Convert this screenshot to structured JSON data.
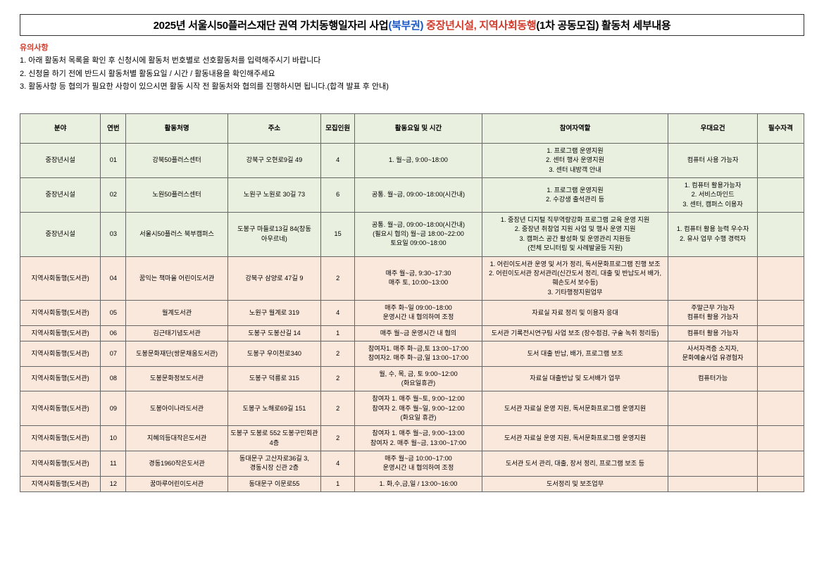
{
  "title": {
    "part1": "2025년 서울시50플러스재단 권역 가치동행일자리 사업",
    "part2": "(북부권)",
    "part3": " 중장년시설, 지역사회동행",
    "part4": "(1차 공동모집) 활동처 세부내용"
  },
  "notice": {
    "header": "유의사항",
    "items": [
      "1. 아래 활동처 목록을 확인 후 신청시에 활동처 번호별로 선호활동처를 입력해주시기 바랍니다",
      "2. 신청을 하기 전에 반드시 활동처별 활동요일 / 시간 / 활동내용을 확인해주세요",
      "3. 활동사항 등 협의가 필요한 사항이 있으시면 활동 시작 전 활동처와 협의를 진행하시면 됩니다.(합격 발표 후 안내)"
    ]
  },
  "columns": [
    "분야",
    "연번",
    "활동처명",
    "주소",
    "모집인원",
    "활동요일 및 시간",
    "참여자역할",
    "우대요건",
    "필수자격"
  ],
  "colors": {
    "header_bg": "#eaf0df",
    "cat_a_bg": "#eaf0df",
    "cat_b_bg": "#fbe8dd",
    "border": "#666666",
    "title_blue": "#1a56c2",
    "title_red": "#d23a2a"
  },
  "rows": [
    {
      "cat": "a",
      "field": "중장년시설",
      "no": "01",
      "name": "강북50플러스센터",
      "addr": "강북구 오현로9길 49",
      "recruit": "4",
      "sched": "1. 월~금, 9:00~18:00",
      "role": "1. 프로그램 운영지원\n2. 센터 행사 운영지원\n3. 센터 내방객 안내",
      "pref": "컴퓨터 사용 가능자",
      "req": ""
    },
    {
      "cat": "a",
      "field": "중장년시설",
      "no": "02",
      "name": "노원50플러스센터",
      "addr": "노원구 노원로 30길 73",
      "recruit": "6",
      "sched": "공통. 월~금, 09:00~18:00(시간내)",
      "role": "1. 프로그램 운영지원\n2. 수강생 출석관리 등",
      "pref": "1. 컴퓨터 활용가능자\n2. 서비스마인드\n3. 센터, 캠퍼스 이용자",
      "req": ""
    },
    {
      "cat": "a",
      "field": "중장년시설",
      "no": "03",
      "name": "서울시50플러스 북부캠퍼스",
      "addr": "도봉구 마들로13길 84(창동 아우르네)",
      "recruit": "15",
      "sched": "공통. 월~금, 09:00~18:00(시간내)\n(필요시 협의) 월~금 18:00~22:00\n토요일 09:00~18:00",
      "role": "1. 중장년 디지털 직무역량강화 프로그램 교육 운영 지원\n2. 중장년 취창업 지원 사업 및 행사 운영 지원\n3. 캠퍼스 공간 활성화 및 운영관리 지원등\n(전체 모니터링 및 사례발굴등 지원)",
      "pref": "1. 컴퓨터 활용 능력 우수자\n2. 유사 업무 수행 경력자",
      "req": ""
    },
    {
      "cat": "b",
      "field": "지역사회동행(도서관)",
      "no": "04",
      "name": "꿈익는 책마을 어린이도서관",
      "addr": "강북구 삼양로 47길 9",
      "recruit": "2",
      "sched": "매주 월~금, 9:30~17:30\n매주 토, 10:00~13:00",
      "role": "1. 어린이도서관 운영 및 서가 정리, 독서문화프로그램 진행 보조\n2. 어린이도서관 장서관리(신간도서 정리, 대출 및 반납도서 배가,\n훼손도서 보수등)\n3. 기타행정지원업무",
      "pref": "",
      "req": ""
    },
    {
      "cat": "b",
      "field": "지역사회동행(도서관)",
      "no": "05",
      "name": "월계도서관",
      "addr": "노원구 월계로 319",
      "recruit": "4",
      "sched": "매주 화~일 09:00~18:00\n운영시간 내 협의하여 조정",
      "role": "자료실 자료 정리 및 이용자 응대",
      "pref": "주말근무 가능자\n컴퓨터 활용 가능자",
      "req": ""
    },
    {
      "cat": "b",
      "field": "지역사회동행(도서관)",
      "no": "06",
      "name": "김근태기념도서관",
      "addr": "도봉구 도봉산길 14",
      "recruit": "1",
      "sched": "매주 월~금 운영시간 내 협의",
      "role": "도서관 기록전시연구팀 사업 보조 (장수점검, 구술 녹취 정리등)",
      "pref": "컴퓨터 활용 가능자",
      "req": ""
    },
    {
      "cat": "b",
      "field": "지역사회동행(도서관)",
      "no": "07",
      "name": "도봉문화재단(쌍문채움도서관)",
      "addr": "도봉구 우이천로340",
      "recruit": "2",
      "sched": "참여자1. 매주 화~금,토 13:00~17:00\n참여자2. 매주 화~금,일 13:00~17:00",
      "role": "도서 대출 반납, 배가, 프로그램 보조",
      "pref": "사서자격증 소지자,\n문화예술사업 유경험자",
      "req": ""
    },
    {
      "cat": "b",
      "field": "지역사회동행(도서관)",
      "no": "08",
      "name": "도봉문화정보도서관",
      "addr": "도봉구 덕릉로 315",
      "recruit": "2",
      "sched": "월, 수, 목, 금, 토 9:00~12:00\n(화요일휴관)",
      "role": "자료실 대출반납 및 도서배가 업무",
      "pref": "컴퓨터가능",
      "req": ""
    },
    {
      "cat": "b",
      "field": "지역사회동행(도서관)",
      "no": "09",
      "name": "도봉아이나라도서관",
      "addr": "도봉구 노해로69길 151",
      "recruit": "2",
      "sched": "참여자 1. 매주 월~토, 9:00~12:00\n참여자 2. 매주 월~일, 9:00~12:00\n(화요일 휴관)",
      "role": "도서관 자료실 운영 지원, 독서문화프로그램 운영지원",
      "pref": "",
      "req": ""
    },
    {
      "cat": "b",
      "field": "지역사회동행(도서관)",
      "no": "10",
      "name": "지혜의등대작은도서관",
      "addr": "도봉구 도봉로 552 도봉구민회관 4층",
      "recruit": "2",
      "sched": "참여자 1. 매주 월~금, 9:00~13:00\n참여자 2. 매주 월~금, 13:00~17:00",
      "role": "도서관 자료실 운영 지원, 독서문화프로그램 운영지원",
      "pref": "",
      "req": ""
    },
    {
      "cat": "b",
      "field": "지역사회동행(도서관)",
      "no": "11",
      "name": "경동1960작은도서관",
      "addr": "동대문구 고산자로36길 3, 경동시장 신관 2층",
      "recruit": "4",
      "sched": "매주 월~금 10:00~17:00\n운영시간 내 협의하여 조정",
      "role": "도서관 도서 관리, 대출, 장서 정리, 프로그램 보조 등",
      "pref": "",
      "req": ""
    },
    {
      "cat": "b",
      "field": "지역사회동행(도서관)",
      "no": "12",
      "name": "꿈마루어린이도서관",
      "addr": "동대문구 이문로55",
      "recruit": "1",
      "sched": "1. 화,수,금,일 / 13:00~16:00",
      "role": "도서정리 및 보조업무",
      "pref": "",
      "req": ""
    }
  ]
}
